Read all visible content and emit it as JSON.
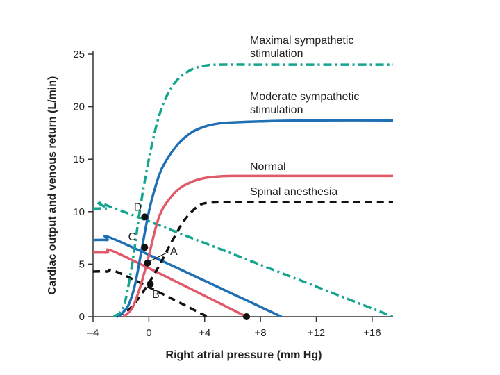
{
  "chart_data": {
    "type": "line",
    "title": "",
    "xlabel": "Right atrial pressure (mm Hg)",
    "ylabel": "Cardiac output and venous return (L/min)",
    "xlim": [
      -4,
      17.5
    ],
    "ylim": [
      0,
      25
    ],
    "xticks": [
      {
        "value": -4,
        "label": "–4"
      },
      {
        "value": 0,
        "label": "0"
      },
      {
        "value": 4,
        "label": "+4"
      },
      {
        "value": 8,
        "label": "+8"
      },
      {
        "value": 12,
        "label": "+12"
      },
      {
        "value": 16,
        "label": "+16"
      }
    ],
    "yticks": [
      {
        "value": 0,
        "label": "0"
      },
      {
        "value": 5,
        "label": "5"
      },
      {
        "value": 10,
        "label": "10"
      },
      {
        "value": 15,
        "label": "15"
      },
      {
        "value": 20,
        "label": "20"
      },
      {
        "value": 25,
        "label": "25"
      }
    ],
    "series": [
      {
        "name": "Maximal sympathetic stimulation",
        "label_lines": [
          "Maximal sympathetic",
          "stimulation"
        ],
        "kind": "cardiac_output",
        "color": "#13A58E",
        "dash": "dashdot",
        "x": [
          -2.5,
          -1.8,
          -1.2,
          -0.6,
          0,
          0.6,
          1.2,
          2,
          3,
          4,
          5,
          8,
          12,
          17.5
        ],
        "y": [
          0,
          1,
          5,
          10.5,
          15,
          18.5,
          20.8,
          22.5,
          23.5,
          23.9,
          24,
          24,
          24,
          24
        ]
      },
      {
        "name": "Moderate sympathetic stimulation",
        "label_lines": [
          "Moderate sympathetic",
          "stimulation"
        ],
        "kind": "cardiac_output",
        "color": "#1F6FB5",
        "dash": "solid",
        "x": [
          -2.2,
          -1.5,
          -1,
          -0.5,
          0,
          0.5,
          1,
          2,
          3,
          4,
          5,
          6,
          8,
          12,
          17.5
        ],
        "y": [
          0,
          1,
          3,
          6.5,
          10,
          12.5,
          14.3,
          16.3,
          17.5,
          18.1,
          18.4,
          18.5,
          18.6,
          18.7,
          18.7
        ]
      },
      {
        "name": "Normal",
        "label_lines": [
          "Normal"
        ],
        "kind": "cardiac_output",
        "color": "#E05A6A",
        "dash": "solid",
        "x": [
          -1.8,
          -1.2,
          -0.7,
          -0.3,
          0,
          0.5,
          1,
          2,
          3,
          4,
          5,
          6,
          8,
          12,
          17.5
        ],
        "y": [
          0,
          0.8,
          2.5,
          4.3,
          5.8,
          8.5,
          10.3,
          12,
          12.8,
          13.2,
          13.35,
          13.4,
          13.4,
          13.4,
          13.4
        ]
      },
      {
        "name": "Spinal anesthesia",
        "label_lines": [
          "Spinal anesthesia"
        ],
        "kind": "cardiac_output",
        "color": "#111111",
        "dash": "dashed",
        "x": [
          -2.3,
          -1.5,
          -1,
          -0.5,
          0,
          0.5,
          1,
          1.5,
          2,
          2.5,
          3,
          3.5,
          4,
          5,
          6,
          8,
          12,
          17.5
        ],
        "y": [
          0,
          0.6,
          1.3,
          2.2,
          3.2,
          4.3,
          5.5,
          6.8,
          8,
          9.1,
          9.9,
          10.5,
          10.8,
          10.9,
          10.9,
          10.9,
          10.9,
          10.9
        ]
      },
      {
        "name": "Venous return (maximal sympathetic)",
        "kind": "venous_return",
        "color": "#13A58E",
        "dash": "dashdot",
        "x": [
          -4,
          -3,
          -2,
          17.5
        ],
        "y": [
          10.3,
          10.3,
          10.1,
          0
        ]
      },
      {
        "name": "Venous return (moderate sympathetic)",
        "kind": "venous_return",
        "color": "#1F6FB5",
        "dash": "solid",
        "x": [
          -4,
          -3,
          -2,
          9.5
        ],
        "y": [
          7.3,
          7.3,
          7.1,
          0
        ]
      },
      {
        "name": "Venous return (normal)",
        "kind": "venous_return",
        "color": "#E05A6A",
        "dash": "solid",
        "x": [
          -4,
          -3,
          -2,
          7
        ],
        "y": [
          6.1,
          6.1,
          5.9,
          0
        ]
      },
      {
        "name": "Venous return (spinal anesthesia)",
        "kind": "venous_return",
        "color": "#111111",
        "dash": "dashed",
        "x": [
          -4,
          -3,
          -2,
          4.2
        ],
        "y": [
          4.3,
          4.3,
          4.1,
          0
        ]
      }
    ],
    "equilibrium_points": [
      {
        "label": "D",
        "x": -0.3,
        "y": 9.5
      },
      {
        "label": "C",
        "x": -0.3,
        "y": 6.6
      },
      {
        "label": "A",
        "x": -0.1,
        "y": 5.1
      },
      {
        "label": "B",
        "x": 0.1,
        "y": 3.1
      }
    ],
    "axis_markers": [
      {
        "x": 7,
        "y": 0
      }
    ]
  }
}
